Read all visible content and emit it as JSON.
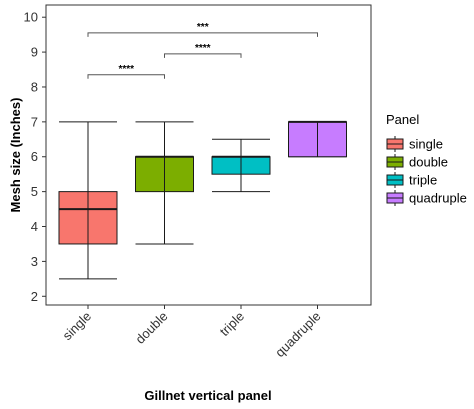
{
  "chart_data": {
    "type": "boxplot",
    "xlabel": "Gillnet vertical panel",
    "ylabel": "Mesh size (Inches)",
    "ylim": [
      1.75,
      10.35
    ],
    "yticks": [
      2,
      3,
      4,
      5,
      6,
      7,
      8,
      9,
      10
    ],
    "grid": false,
    "legend": {
      "title": "Panel",
      "position": "right",
      "entries": [
        "single",
        "double",
        "triple",
        "quadruple"
      ]
    },
    "categories": [
      "single",
      "double",
      "triple",
      "quadruple"
    ],
    "boxes": [
      {
        "name": "single",
        "min": 2.5,
        "q1": 3.5,
        "median": 4.5,
        "q3": 5.0,
        "max": 7.0,
        "color": "#F8766D"
      },
      {
        "name": "double",
        "min": 3.5,
        "q1": 5.0,
        "median": 6.0,
        "q3": 6.0,
        "max": 7.0,
        "color": "#7CAE00"
      },
      {
        "name": "triple",
        "min": 5.0,
        "q1": 5.5,
        "median": 6.0,
        "q3": 6.0,
        "max": 6.5,
        "color": "#00BFC4"
      },
      {
        "name": "quadruple",
        "min": 6.0,
        "q1": 6.0,
        "median": 7.0,
        "q3": 7.0,
        "max": 7.0,
        "color": "#C77CFF"
      }
    ],
    "significance": [
      {
        "from": "single",
        "to": "double",
        "y": 8.35,
        "label": "****"
      },
      {
        "from": "double",
        "to": "triple",
        "y": 8.95,
        "label": "****"
      },
      {
        "from": "single",
        "to": "quadruple",
        "y": 9.55,
        "label": "***"
      }
    ]
  }
}
